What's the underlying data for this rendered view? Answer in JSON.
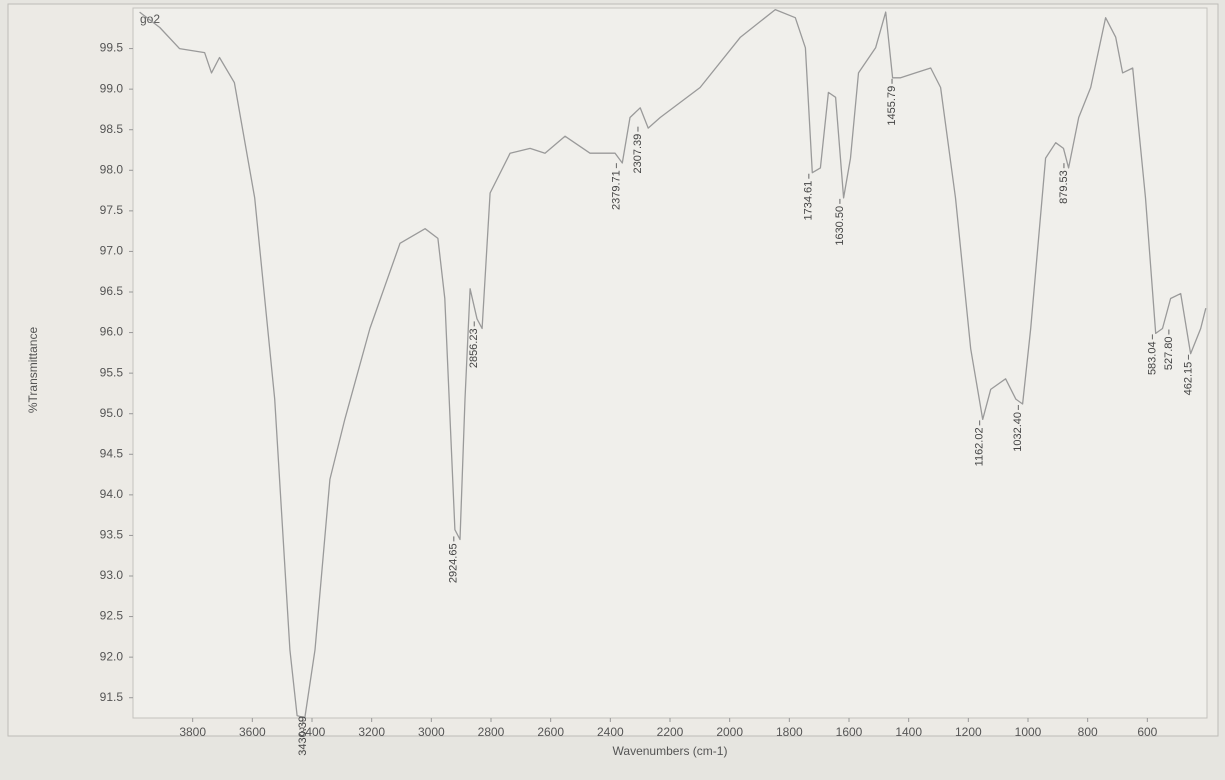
{
  "chart_data": {
    "type": "line",
    "title": "go2",
    "x_label": "Wavenumbers (cm-1)",
    "y_label": "%Transmittance",
    "color": "#9a9a9a",
    "xlim": [
      4000,
      400
    ],
    "ylim": [
      91.25,
      100.0
    ],
    "xticks": [
      3800,
      3600,
      3400,
      3200,
      3000,
      2800,
      2600,
      2400,
      2200,
      2000,
      1800,
      1600,
      1400,
      1200,
      1000,
      800,
      600
    ],
    "yticks": [
      91.5,
      {
        "value": 92,
        "label": "92.0"
      },
      92.5,
      {
        "value": 93,
        "label": "93.0"
      },
      93.5,
      {
        "value": 94,
        "label": "94.0"
      },
      94.5,
      {
        "value": 95,
        "label": "95.0"
      },
      95.5,
      {
        "value": 96,
        "label": "96.0"
      },
      96.5,
      {
        "value": 97,
        "label": "97.0"
      },
      97.5,
      {
        "value": 98,
        "label": "98.0"
      },
      98.5,
      {
        "value": 99,
        "label": "99.0"
      },
      99.5
    ],
    "x": [
      3978,
      3910,
      3844,
      3760,
      3737,
      3710,
      3660,
      3592,
      3525,
      3474,
      3450,
      3424,
      3390,
      3340,
      3290,
      3206,
      3105,
      3021,
      2978,
      2955,
      2921,
      2904,
      2887,
      2870,
      2847,
      2830,
      2803,
      2736,
      2669,
      2619,
      2552,
      2468,
      2384,
      2360,
      2334,
      2300,
      2273,
      2233,
      2099,
      1964,
      1847,
      1780,
      1746,
      1723,
      1696,
      1669,
      1645,
      1618,
      1595,
      1568,
      1511,
      1477,
      1454,
      1427,
      1377,
      1326,
      1293,
      1243,
      1192,
      1152,
      1125,
      1075,
      1041,
      1018,
      991,
      941,
      907,
      881,
      864,
      830,
      790,
      740,
      706,
      683,
      649,
      606,
      572,
      549,
      522,
      488,
      455,
      421,
      404
    ],
    "values": [
      99.95,
      99.76,
      99.5,
      99.45,
      99.2,
      99.39,
      99.08,
      97.66,
      95.18,
      92.09,
      91.28,
      91.25,
      92.09,
      94.19,
      94.93,
      96.05,
      97.1,
      97.28,
      97.16,
      96.42,
      93.57,
      93.45,
      95.18,
      96.54,
      96.17,
      96.05,
      97.72,
      98.21,
      98.27,
      98.21,
      98.42,
      98.21,
      98.21,
      98.09,
      98.65,
      98.77,
      98.52,
      98.65,
      99.02,
      99.64,
      99.98,
      99.88,
      99.51,
      97.97,
      98.03,
      98.96,
      98.9,
      97.66,
      98.15,
      99.2,
      99.51,
      99.95,
      99.14,
      99.14,
      99.2,
      99.26,
      99.02,
      97.66,
      95.8,
      94.93,
      95.3,
      95.43,
      95.18,
      95.12,
      96.05,
      98.15,
      98.34,
      98.27,
      98.03,
      98.65,
      99.02,
      99.88,
      99.64,
      99.2,
      99.26,
      97.66,
      95.99,
      96.05,
      96.42,
      96.48,
      95.74,
      96.05,
      96.3
    ],
    "peaks": [
      {
        "x": 3430.39,
        "y": 91.25,
        "label": "3430.39"
      },
      {
        "x": 2924.65,
        "y": 93.5,
        "label": "2924.65"
      },
      {
        "x": 2856.23,
        "y": 96.15,
        "label": "2856.23"
      },
      {
        "x": 2379.71,
        "y": 98.1,
        "label": "2379.71"
      },
      {
        "x": 2307.39,
        "y": 98.55,
        "label": "2307.39"
      },
      {
        "x": 1734.61,
        "y": 97.97,
        "label": "1734.61"
      },
      {
        "x": 1630.5,
        "y": 97.66,
        "label": "1630.50"
      },
      {
        "x": 1455.79,
        "y": 99.14,
        "label": "1455.79"
      },
      {
        "x": 1162.02,
        "y": 94.93,
        "label": "1162.02"
      },
      {
        "x": 1032.4,
        "y": 95.12,
        "label": "1032.40"
      },
      {
        "x": 879.53,
        "y": 98.1,
        "label": "879.53"
      },
      {
        "x": 583.04,
        "y": 95.99,
        "label": "583.04"
      },
      {
        "x": 527.8,
        "y": 96.05,
        "label": "527.80"
      },
      {
        "x": 462.15,
        "y": 95.74,
        "label": "462.15"
      }
    ]
  }
}
